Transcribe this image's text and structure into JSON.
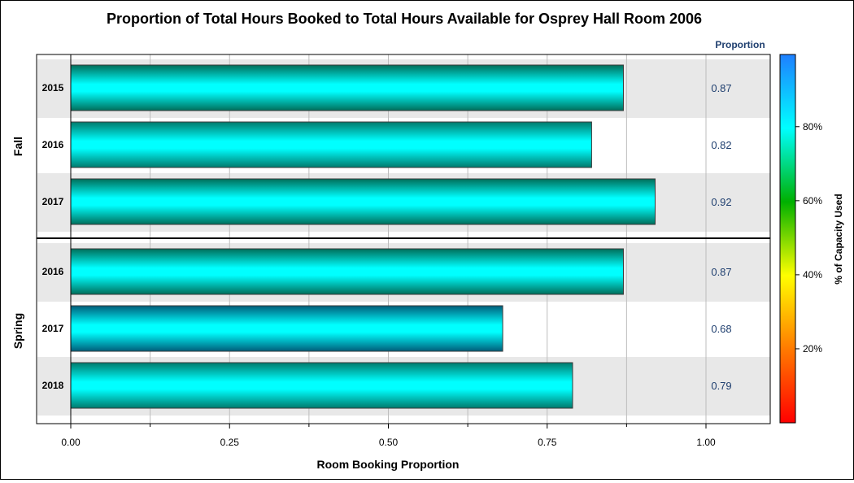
{
  "chart_data": {
    "type": "bar",
    "orientation": "horizontal",
    "title": "Proportion of Total Hours Booked to Total Hours Available for Osprey Hall Room 2006",
    "xlabel": "Room Booking Proportion",
    "value_column_header": "Proportion",
    "xlim": [
      0,
      1.1
    ],
    "xticks": [
      "0.00",
      "0.25",
      "0.50",
      "0.75",
      "1.00"
    ],
    "grid": true,
    "groups": [
      {
        "name": "Fall",
        "categories": [
          "2015",
          "2016",
          "2017"
        ],
        "values": [
          0.87,
          0.82,
          0.92
        ],
        "labels": [
          "0.87",
          "0.82",
          "0.92"
        ]
      },
      {
        "name": "Spring",
        "categories": [
          "2016",
          "2017",
          "2018"
        ],
        "values": [
          0.87,
          0.68,
          0.79
        ],
        "labels": [
          "0.87",
          "0.68",
          "0.79"
        ]
      }
    ],
    "colorbar": {
      "label": "% of Capacity Used",
      "ticks": [
        "20%",
        "40%",
        "60%",
        "80%"
      ],
      "range": [
        0,
        1
      ],
      "colors": [
        "#ff0000",
        "#ff7a00",
        "#ffff00",
        "#00b000",
        "#00ffff",
        "#1e7fff"
      ]
    },
    "colors": {
      "bar_light": "#00ffff",
      "bar_dark_fall": "#00806a",
      "band": "#e8e8e8"
    }
  }
}
